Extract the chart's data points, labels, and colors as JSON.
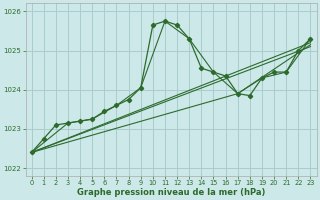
{
  "xlabel": "Graphe pression niveau de la mer (hPa)",
  "bg_color": "#cce8e8",
  "grid_color": "#aacccc",
  "line_color": "#2d6b2d",
  "xlim": [
    -0.5,
    23.5
  ],
  "ylim": [
    1021.8,
    1026.2
  ],
  "yticks": [
    1022,
    1023,
    1024,
    1025,
    1026
  ],
  "xticks": [
    0,
    1,
    2,
    3,
    4,
    5,
    6,
    7,
    8,
    9,
    10,
    11,
    12,
    13,
    14,
    15,
    16,
    17,
    18,
    19,
    20,
    21,
    22,
    23
  ],
  "series_with_markers": {
    "x": [
      0,
      1,
      2,
      3,
      4,
      5,
      6,
      7,
      8,
      9,
      10,
      11,
      12,
      13,
      14,
      15,
      16,
      17,
      18,
      19,
      20,
      21,
      22,
      23
    ],
    "y": [
      1022.4,
      1022.75,
      1023.1,
      1023.15,
      1023.2,
      1023.25,
      1023.45,
      1023.6,
      1023.75,
      1024.05,
      1025.65,
      1025.75,
      1025.65,
      1025.3,
      1024.55,
      1024.45,
      1024.35,
      1023.9,
      1023.85,
      1024.3,
      1024.45,
      1024.45,
      1025.0,
      1025.3
    ]
  },
  "series_plain": [
    {
      "x": [
        0,
        3,
        5,
        7,
        9,
        11,
        13,
        15,
        17,
        19,
        21,
        23
      ],
      "y": [
        1022.4,
        1023.15,
        1023.25,
        1023.6,
        1024.05,
        1025.75,
        1025.3,
        1024.45,
        1023.9,
        1024.3,
        1024.45,
        1025.3
      ]
    },
    {
      "x": [
        0,
        23
      ],
      "y": [
        1022.4,
        1025.1
      ]
    },
    {
      "x": [
        0,
        23
      ],
      "y": [
        1022.4,
        1025.2
      ]
    },
    {
      "x": [
        0,
        17,
        23
      ],
      "y": [
        1022.4,
        1023.9,
        1025.15
      ]
    }
  ]
}
